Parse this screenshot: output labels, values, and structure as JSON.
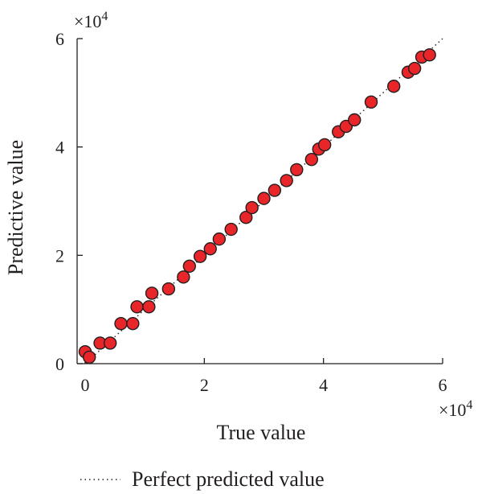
{
  "chart_data": {
    "type": "scatter",
    "xlabel": "True value",
    "ylabel": "Predictive value",
    "x_multiplier": "×10",
    "x_multiplier_exp": "4",
    "y_multiplier": "×10",
    "y_multiplier_exp": "4",
    "xlim": [
      -0.1,
      6
    ],
    "ylim": [
      0,
      6
    ],
    "x_ticks": [
      {
        "value": 0,
        "label": "0"
      },
      {
        "value": 2,
        "label": "2"
      },
      {
        "value": 4,
        "label": "4"
      },
      {
        "value": 6,
        "label": "6"
      }
    ],
    "y_ticks": [
      {
        "value": 0,
        "label": "0"
      },
      {
        "value": 2,
        "label": "2"
      },
      {
        "value": 4,
        "label": "4"
      },
      {
        "value": 6,
        "label": "6"
      }
    ],
    "reference_line": {
      "label": "Perfect predicted value",
      "style": "dotted",
      "from": [
        0,
        0
      ],
      "to": [
        6,
        6
      ]
    },
    "legend_position": "bottom-left",
    "grid": false,
    "point_color": "#e8262a",
    "points": [
      [
        0.0,
        0.22
      ],
      [
        0.07,
        0.12
      ],
      [
        0.25,
        0.38
      ],
      [
        0.42,
        0.38
      ],
      [
        0.6,
        0.74
      ],
      [
        0.8,
        0.74
      ],
      [
        0.87,
        1.05
      ],
      [
        1.07,
        1.05
      ],
      [
        1.12,
        1.3
      ],
      [
        1.4,
        1.38
      ],
      [
        1.65,
        1.6
      ],
      [
        1.75,
        1.8
      ],
      [
        1.93,
        1.98
      ],
      [
        2.1,
        2.12
      ],
      [
        2.25,
        2.3
      ],
      [
        2.45,
        2.48
      ],
      [
        2.7,
        2.7
      ],
      [
        2.8,
        2.88
      ],
      [
        3.0,
        3.05
      ],
      [
        3.18,
        3.2
      ],
      [
        3.38,
        3.38
      ],
      [
        3.55,
        3.58
      ],
      [
        3.8,
        3.77
      ],
      [
        3.92,
        3.96
      ],
      [
        4.02,
        4.04
      ],
      [
        4.25,
        4.28
      ],
      [
        4.38,
        4.38
      ],
      [
        4.52,
        4.5
      ],
      [
        4.8,
        4.83
      ],
      [
        5.18,
        5.12
      ],
      [
        5.42,
        5.38
      ],
      [
        5.53,
        5.45
      ],
      [
        5.65,
        5.66
      ],
      [
        5.78,
        5.7
      ]
    ]
  }
}
